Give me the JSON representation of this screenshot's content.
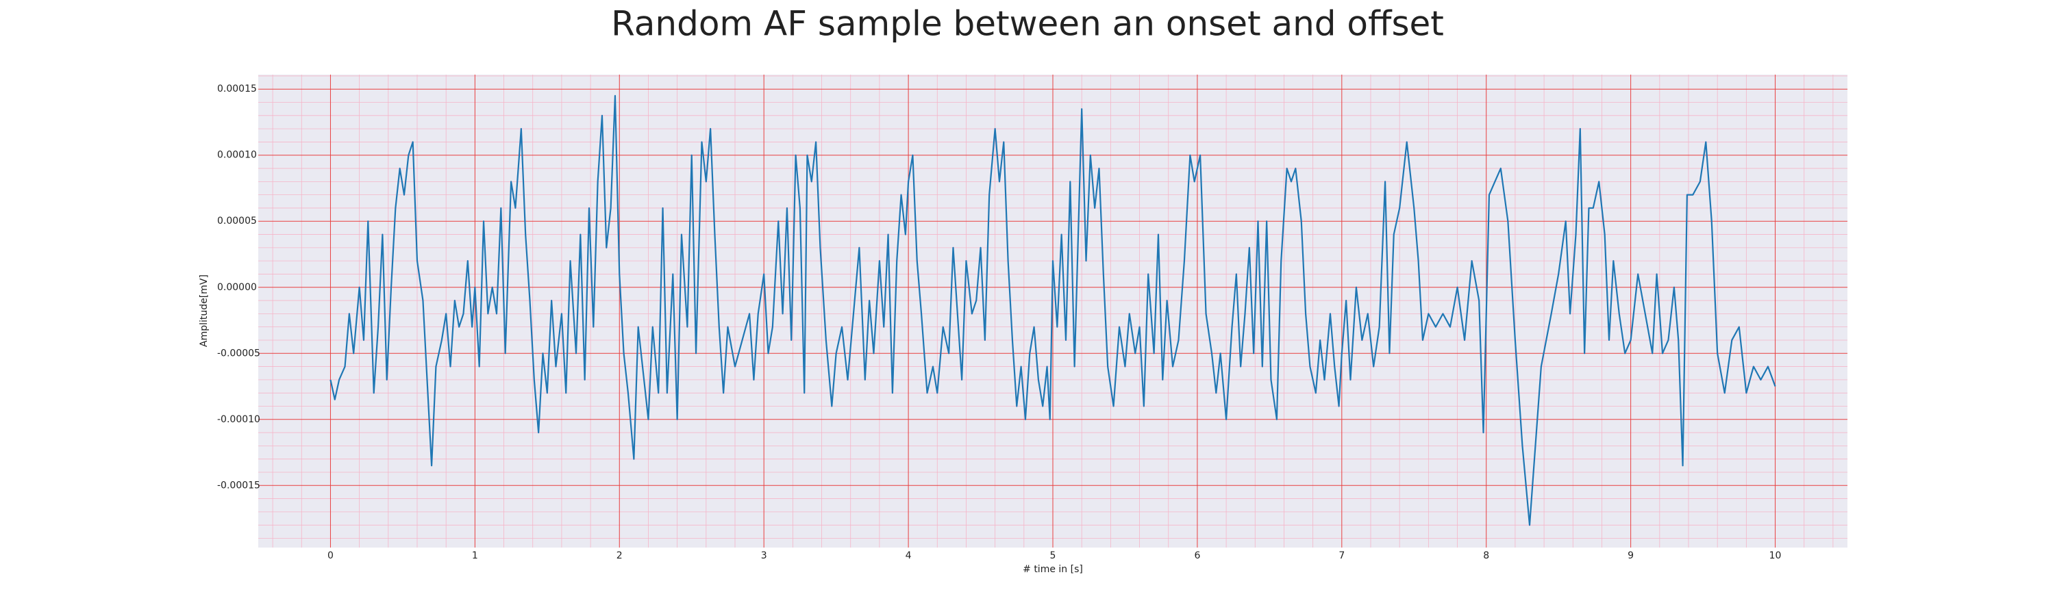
{
  "chart_data": {
    "type": "line",
    "title": "Random AF sample between an onset and offset",
    "xlabel": "# time in [s]",
    "ylabel": "Amplitude[mV]",
    "color": "#1f77b4",
    "grid": true,
    "xlim": [
      -0.5,
      10.5
    ],
    "xticks": [
      0,
      1,
      2,
      3,
      4,
      5,
      6,
      7,
      8,
      9,
      10
    ],
    "ylim": [
      -0.000197,
      0.000161
    ],
    "yticks": [
      -0.00015,
      {
        "value": -0.0001,
        "label": "-0.00010"
      },
      -5e-05,
      {
        "value": 0,
        "label": "0.00000"
      },
      5e-05,
      {
        "value": 0.0001,
        "label": "0.00010"
      },
      0.00015
    ],
    "x": [
      0.0,
      0.03,
      0.06,
      0.1,
      0.13,
      0.16,
      0.2,
      0.23,
      0.26,
      0.3,
      0.33,
      0.36,
      0.39,
      0.42,
      0.45,
      0.48,
      0.51,
      0.54,
      0.57,
      0.6,
      0.64,
      0.7,
      0.73,
      0.77,
      0.8,
      0.83,
      0.86,
      0.89,
      0.92,
      0.95,
      0.98,
      1.0,
      1.03,
      1.06,
      1.09,
      1.12,
      1.15,
      1.18,
      1.21,
      1.25,
      1.28,
      1.32,
      1.35,
      1.38,
      1.41,
      1.44,
      1.47,
      1.5,
      1.53,
      1.56,
      1.6,
      1.63,
      1.66,
      1.7,
      1.73,
      1.76,
      1.79,
      1.82,
      1.85,
      1.88,
      1.91,
      1.94,
      1.97,
      2.0,
      2.03,
      2.06,
      2.1,
      2.13,
      2.16,
      2.2,
      2.23,
      2.27,
      2.3,
      2.33,
      2.37,
      2.4,
      2.43,
      2.47,
      2.5,
      2.53,
      2.57,
      2.6,
      2.63,
      2.66,
      2.69,
      2.72,
      2.75,
      2.8,
      2.85,
      2.9,
      2.93,
      2.96,
      3.0,
      3.03,
      3.06,
      3.1,
      3.13,
      3.16,
      3.19,
      3.22,
      3.25,
      3.28,
      3.3,
      3.33,
      3.36,
      3.39,
      3.43,
      3.47,
      3.5,
      3.54,
      3.58,
      3.62,
      3.66,
      3.7,
      3.73,
      3.76,
      3.8,
      3.83,
      3.86,
      3.89,
      3.92,
      3.95,
      3.98,
      4.0,
      4.03,
      4.06,
      4.09,
      4.13,
      4.17,
      4.2,
      4.24,
      4.28,
      4.31,
      4.34,
      4.37,
      4.4,
      4.44,
      4.47,
      4.5,
      4.53,
      4.56,
      4.6,
      4.63,
      4.66,
      4.69,
      4.72,
      4.75,
      4.78,
      4.81,
      4.84,
      4.87,
      4.9,
      4.93,
      4.96,
      4.98,
      5.0,
      5.03,
      5.06,
      5.09,
      5.12,
      5.15,
      5.2,
      5.23,
      5.26,
      5.29,
      5.32,
      5.35,
      5.38,
      5.42,
      5.46,
      5.5,
      5.53,
      5.57,
      5.6,
      5.63,
      5.66,
      5.7,
      5.73,
      5.76,
      5.79,
      5.83,
      5.87,
      5.91,
      5.95,
      5.98,
      6.02,
      6.06,
      6.1,
      6.13,
      6.16,
      6.2,
      6.24,
      6.27,
      6.3,
      6.33,
      6.36,
      6.39,
      6.42,
      6.45,
      6.48,
      6.51,
      6.55,
      6.58,
      6.62,
      6.65,
      6.68,
      6.72,
      6.75,
      6.78,
      6.82,
      6.85,
      6.88,
      6.92,
      6.95,
      6.98,
      7.0,
      7.03,
      7.06,
      7.1,
      7.14,
      7.18,
      7.22,
      7.26,
      7.3,
      7.33,
      7.36,
      7.4,
      7.45,
      7.5,
      7.53,
      7.56,
      7.6,
      7.65,
      7.7,
      7.75,
      7.8,
      7.85,
      7.9,
      7.95,
      7.98,
      8.02,
      8.06,
      8.1,
      8.15,
      8.2,
      8.25,
      8.3,
      8.34,
      8.38,
      8.45,
      8.5,
      8.55,
      8.58,
      8.62,
      8.65,
      8.68,
      8.71,
      8.74,
      8.78,
      8.82,
      8.85,
      8.88,
      8.92,
      8.96,
      9.0,
      9.05,
      9.1,
      9.15,
      9.18,
      9.22,
      9.26,
      9.3,
      9.33,
      9.36,
      9.39,
      9.43,
      9.48,
      9.52,
      9.56,
      9.6,
      9.65,
      9.7,
      9.75,
      9.8,
      9.85,
      9.9,
      9.95,
      10.0
    ],
    "values": [
      -7e-05,
      -8.5e-05,
      -7e-05,
      -6e-05,
      -2e-05,
      -5e-05,
      0.0,
      -4e-05,
      5e-05,
      -8e-05,
      -3e-05,
      4e-05,
      -7e-05,
      0.0,
      6e-05,
      9e-05,
      7e-05,
      0.0001,
      0.00011,
      2e-05,
      -1e-05,
      -0.000135,
      -6e-05,
      -4e-05,
      -2e-05,
      -6e-05,
      -1e-05,
      -3e-05,
      -2e-05,
      2e-05,
      -3e-05,
      0.0,
      -6e-05,
      5e-05,
      -2e-05,
      0.0,
      -2e-05,
      6e-05,
      -5e-05,
      8e-05,
      6e-05,
      0.00012,
      4e-05,
      -1e-05,
      -7e-05,
      -0.00011,
      -5e-05,
      -8e-05,
      -1e-05,
      -6e-05,
      -2e-05,
      -8e-05,
      2e-05,
      -5e-05,
      4e-05,
      -7e-05,
      6e-05,
      -3e-05,
      8e-05,
      0.00013,
      3e-05,
      6e-05,
      0.000145,
      1e-05,
      -5e-05,
      -8e-05,
      -0.00013,
      -3e-05,
      -6e-05,
      -0.0001,
      -3e-05,
      -8e-05,
      6e-05,
      -8e-05,
      1e-05,
      -0.0001,
      4e-05,
      -3e-05,
      0.0001,
      -5e-05,
      0.00011,
      8e-05,
      0.00012,
      4e-05,
      -3e-05,
      -8e-05,
      -3e-05,
      -6e-05,
      -4e-05,
      -2e-05,
      -7e-05,
      -2e-05,
      1e-05,
      -5e-05,
      -3e-05,
      5e-05,
      -2e-05,
      6e-05,
      -4e-05,
      0.0001,
      6e-05,
      -8e-05,
      0.0001,
      8e-05,
      0.00011,
      3e-05,
      -4e-05,
      -9e-05,
      -5e-05,
      -3e-05,
      -7e-05,
      -2e-05,
      3e-05,
      -7e-05,
      -1e-05,
      -5e-05,
      2e-05,
      -3e-05,
      4e-05,
      -8e-05,
      2e-05,
      7e-05,
      4e-05,
      8e-05,
      0.0001,
      2e-05,
      -2e-05,
      -8e-05,
      -6e-05,
      -8e-05,
      -3e-05,
      -5e-05,
      3e-05,
      -2e-05,
      -7e-05,
      2e-05,
      -2e-05,
      -1e-05,
      3e-05,
      -4e-05,
      7e-05,
      0.00012,
      8e-05,
      0.00011,
      2e-05,
      -4e-05,
      -9e-05,
      -6e-05,
      -0.0001,
      -5e-05,
      -3e-05,
      -7e-05,
      -9e-05,
      -6e-05,
      -0.0001,
      2e-05,
      -3e-05,
      4e-05,
      -4e-05,
      8e-05,
      -6e-05,
      0.000135,
      2e-05,
      0.0001,
      6e-05,
      9e-05,
      1e-05,
      -6e-05,
      -9e-05,
      -3e-05,
      -6e-05,
      -2e-05,
      -5e-05,
      -3e-05,
      -9e-05,
      1e-05,
      -5e-05,
      4e-05,
      -7e-05,
      -1e-05,
      -6e-05,
      -4e-05,
      2e-05,
      0.0001,
      8e-05,
      0.0001,
      -2e-05,
      -5e-05,
      -8e-05,
      -5e-05,
      -0.0001,
      -3e-05,
      1e-05,
      -6e-05,
      -2e-05,
      3e-05,
      -5e-05,
      5e-05,
      -6e-05,
      5e-05,
      -7e-05,
      -0.0001,
      2e-05,
      9e-05,
      8e-05,
      9e-05,
      5e-05,
      -2e-05,
      -6e-05,
      -8e-05,
      -4e-05,
      -7e-05,
      -2e-05,
      -6e-05,
      -9e-05,
      -5e-05,
      -1e-05,
      -7e-05,
      0.0,
      -4e-05,
      -2e-05,
      -6e-05,
      -3e-05,
      8e-05,
      -5e-05,
      4e-05,
      6e-05,
      0.00011,
      6e-05,
      2e-05,
      -4e-05,
      -2e-05,
      -3e-05,
      -2e-05,
      -3e-05,
      0.0,
      -4e-05,
      2e-05,
      -1e-05,
      -0.00011,
      7e-05,
      8e-05,
      9e-05,
      5e-05,
      -4e-05,
      -0.00012,
      -0.00018,
      -0.00012,
      -6e-05,
      -2e-05,
      1e-05,
      5e-05,
      -2e-05,
      4e-05,
      0.00012,
      -5e-05,
      6e-05,
      6e-05,
      8e-05,
      4e-05,
      -4e-05,
      2e-05,
      -2e-05,
      -5e-05,
      -4e-05,
      1e-05,
      -2e-05,
      -5e-05,
      1e-05,
      -5e-05,
      -4e-05,
      0.0,
      -4e-05,
      -0.000135,
      7e-05,
      7e-05,
      8e-05,
      0.00011,
      5e-05,
      -5e-05,
      -8e-05,
      -4e-05,
      -3e-05,
      -8e-05,
      -6e-05,
      -7e-05,
      -6e-05,
      -7.5e-05
    ]
  }
}
